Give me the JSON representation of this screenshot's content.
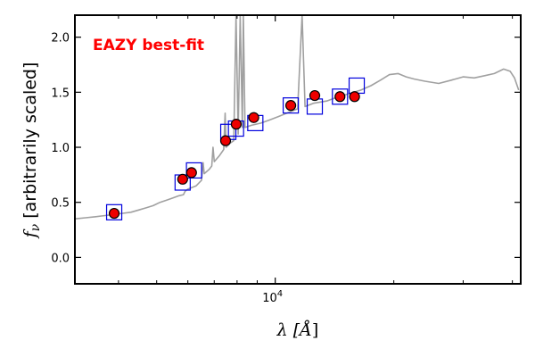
{
  "chart_data": {
    "type": "scatter",
    "annotation": "EAZY best-fit",
    "annotation_color": "#ff0000",
    "xlabel_parts": [
      "λ [",
      "Å",
      "]"
    ],
    "ylabel_parts": [
      "f",
      "ν",
      " [arbitrarily scaled]"
    ],
    "x_scale": "log",
    "xlim": [
      3100,
      42000
    ],
    "ylim": [
      -0.24,
      2.2
    ],
    "x_tick_labels": [
      {
        "value": 10000,
        "base": "10",
        "exp": "4"
      }
    ],
    "x_minor_ticks": [
      4000,
      5000,
      6000,
      7000,
      8000,
      9000,
      20000,
      30000,
      40000
    ],
    "y_ticks": [
      0.0,
      0.5,
      1.0,
      1.5,
      2.0
    ],
    "y_tick_labels": [
      "0.0",
      "0.5",
      "1.0",
      "1.5",
      "2.0"
    ],
    "colors": {
      "template": "#a0a0a0",
      "model_box": "#0000dd",
      "observed": "#ee0000",
      "edge": "#000000"
    },
    "template_sed": [
      [
        3100,
        0.35
      ],
      [
        3300,
        0.36
      ],
      [
        3500,
        0.37
      ],
      [
        3700,
        0.38
      ],
      [
        3900,
        0.39
      ],
      [
        4100,
        0.4
      ],
      [
        4300,
        0.41
      ],
      [
        4500,
        0.43
      ],
      [
        4700,
        0.45
      ],
      [
        4900,
        0.47
      ],
      [
        5100,
        0.5
      ],
      [
        5300,
        0.52
      ],
      [
        5500,
        0.54
      ],
      [
        5700,
        0.56
      ],
      [
        5850,
        0.57
      ],
      [
        5900,
        0.6
      ],
      [
        6000,
        0.62
      ],
      [
        6300,
        0.65
      ],
      [
        6500,
        0.7
      ],
      [
        6560,
        0.86
      ],
      [
        6600,
        0.76
      ],
      [
        6800,
        0.8
      ],
      [
        6900,
        0.83
      ],
      [
        6950,
        1.0
      ],
      [
        7000,
        0.87
      ],
      [
        7200,
        0.92
      ],
      [
        7400,
        0.98
      ],
      [
        7460,
        1.31
      ],
      [
        7500,
        1.0
      ],
      [
        7700,
        1.04
      ],
      [
        7850,
        1.06
      ],
      [
        7950,
        2.2
      ],
      [
        8050,
        1.12
      ],
      [
        8150,
        2.2
      ],
      [
        8250,
        1.18
      ],
      [
        8300,
        2.2
      ],
      [
        8380,
        1.18
      ],
      [
        8700,
        1.2
      ],
      [
        9200,
        1.22
      ],
      [
        9700,
        1.25
      ],
      [
        10200,
        1.28
      ],
      [
        10700,
        1.31
      ],
      [
        11400,
        1.35
      ],
      [
        11700,
        2.2
      ],
      [
        11900,
        1.37
      ],
      [
        12500,
        1.4
      ],
      [
        13500,
        1.42
      ],
      [
        14500,
        1.46
      ],
      [
        15500,
        1.49
      ],
      [
        16500,
        1.52
      ],
      [
        17500,
        1.56
      ],
      [
        18500,
        1.61
      ],
      [
        19500,
        1.66
      ],
      [
        20500,
        1.67
      ],
      [
        21500,
        1.64
      ],
      [
        22500,
        1.62
      ],
      [
        24000,
        1.6
      ],
      [
        26000,
        1.58
      ],
      [
        28000,
        1.61
      ],
      [
        30000,
        1.64
      ],
      [
        32000,
        1.63
      ],
      [
        34000,
        1.65
      ],
      [
        36000,
        1.67
      ],
      [
        38000,
        1.71
      ],
      [
        39500,
        1.69
      ],
      [
        40500,
        1.63
      ],
      [
        41500,
        1.52
      ]
    ],
    "model_flux": [
      {
        "x": 3900,
        "y": 0.41
      },
      {
        "x": 5820,
        "y": 0.68
      },
      {
        "x": 6220,
        "y": 0.79
      },
      {
        "x": 7600,
        "y": 1.14
      },
      {
        "x": 7950,
        "y": 1.17
      },
      {
        "x": 8900,
        "y": 1.22
      },
      {
        "x": 10950,
        "y": 1.38
      },
      {
        "x": 12600,
        "y": 1.37
      },
      {
        "x": 14600,
        "y": 1.46
      },
      {
        "x": 16100,
        "y": 1.56
      }
    ],
    "observed_flux": [
      {
        "x": 3900,
        "y": 0.4,
        "err": 0.02
      },
      {
        "x": 5820,
        "y": 0.71,
        "err": 0.02
      },
      {
        "x": 6130,
        "y": 0.77,
        "err": 0.02
      },
      {
        "x": 7480,
        "y": 1.06,
        "err": 0.02
      },
      {
        "x": 7960,
        "y": 1.21,
        "err": 0.03
      },
      {
        "x": 8820,
        "y": 1.27,
        "err": 0.03
      },
      {
        "x": 10950,
        "y": 1.38,
        "err": 0.02
      },
      {
        "x": 12600,
        "y": 1.47,
        "err": 0.04
      },
      {
        "x": 14600,
        "y": 1.46,
        "err": 0.03
      },
      {
        "x": 15900,
        "y": 1.46,
        "err": 0.02
      }
    ]
  }
}
